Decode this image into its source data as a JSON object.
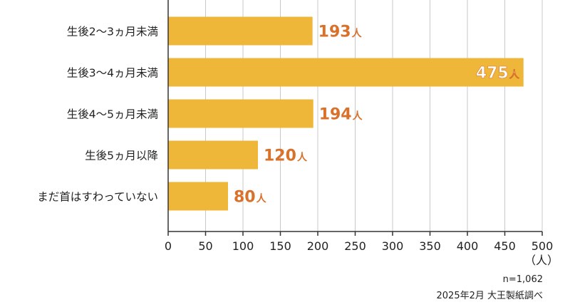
{
  "chart_data": {
    "type": "bar",
    "orientation": "horizontal",
    "categories": [
      "生後2～3ヵ月未満",
      "生後3～4ヵ月未満",
      "生後4～5ヵ月未満",
      "生後5ヵ月以降",
      "まだ首はすわっていない"
    ],
    "values": [
      193,
      475,
      194,
      120,
      80
    ],
    "value_suffix": "人",
    "xlim": [
      0,
      500
    ],
    "xticks": [
      0,
      50,
      100,
      150,
      200,
      250,
      300,
      350,
      400,
      450,
      500
    ],
    "xlabel": "（人）",
    "grid": true,
    "colors": {
      "bar": "#EEB73A",
      "label": "#D9712A",
      "label_inside": "#ffffff",
      "grid": "#C8C8C8",
      "axis": "#333333"
    }
  },
  "notes": {
    "sample": "n=1,062",
    "source": "2025年2月 大王製紙調べ"
  }
}
